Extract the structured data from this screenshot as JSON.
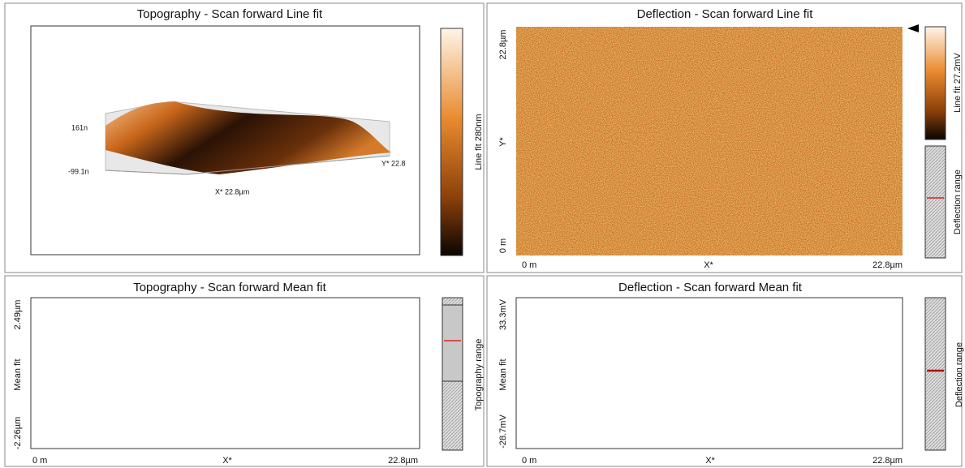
{
  "panels": [
    {
      "title": "Topography - Scan forward   Line fit",
      "z_top_label": "161n",
      "z_bottom_label": "-99.1n",
      "y_axis_label": "Y* 22.8",
      "x_axis_label": "X* 22.8µm",
      "colorbar_label": "Line fit 280nm"
    },
    {
      "title": "Deflection - Scan forward   Line fit",
      "y_labels": [
        "22.8µm",
        "Y*",
        "0 m"
      ],
      "x_labels": [
        "0 m",
        "X*",
        "22.8µm"
      ],
      "colorbar_label": "Line fit 27.2mV",
      "range_label": "Deflection range"
    },
    {
      "title": "Topography - Scan forward   Mean fit",
      "y_labels": [
        "2.49µm",
        "Mean fit",
        "-2.26µm"
      ],
      "x_labels": [
        "0 m",
        "X*",
        "22.8µm"
      ],
      "range_label": "Topography range"
    },
    {
      "title": "Deflection - Scan forward   Mean fit",
      "y_labels": [
        "33.3mV",
        "Mean fit",
        "-28.7mV"
      ],
      "x_labels": [
        "0 m",
        "X*",
        "22.8µm"
      ],
      "range_label": "Deflection range"
    }
  ]
}
